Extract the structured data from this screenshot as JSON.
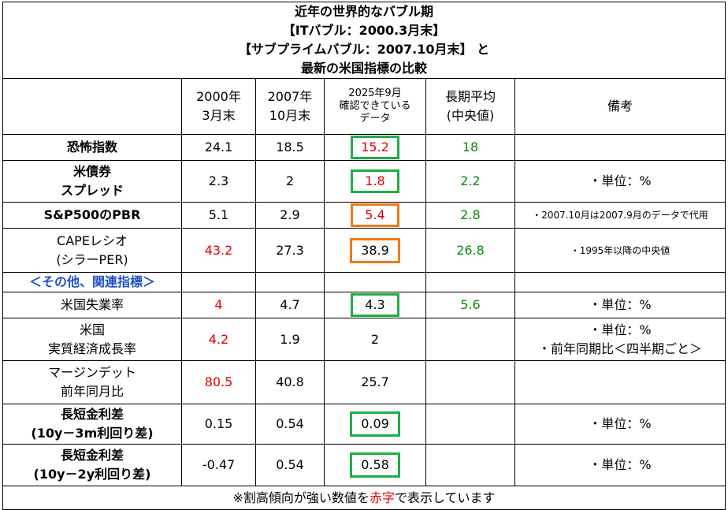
{
  "title": {
    "line1": "近年の世界的なバブル期",
    "line2": "【ITバブル：2000.3月末】",
    "line3": "【サブプライムバブル：2007.10月末】 と",
    "line4": "最新の米国指標の比較"
  },
  "headers": {
    "col1_a": "2000年",
    "col1_b": "3月末",
    "col2_a": "2007年",
    "col2_b": "10月末",
    "col3_a": "2025年9月",
    "col3_b": "確認できている",
    "col3_c": "データ",
    "col4_a": "長期平均",
    "col4_b": "(中央値)",
    "col5": "備考"
  },
  "rows": [
    {
      "label_a": "恐怖指数",
      "label_b": "",
      "v2000": "24.1",
      "v2007": "18.5",
      "v2025": "15.2",
      "avg": "18",
      "note": ""
    },
    {
      "label_a": "米債券",
      "label_b": "スプレッド",
      "v2000": "2.3",
      "v2007": "2",
      "v2025": "1.8",
      "avg": "2.2",
      "note": "・単位：%"
    },
    {
      "label_a": "S&P500のPBR",
      "label_b": "",
      "v2000": "5.1",
      "v2007": "2.9",
      "v2025": "5.4",
      "avg": "2.8",
      "note": "・2007.10月は2007.9月のデータで代用"
    },
    {
      "label_a": "CAPEレシオ",
      "label_b": "(シラーPER)",
      "v2000": "43.2",
      "v2007": "27.3",
      "v2025": "38.9",
      "avg": "26.8",
      "note": "・1995年以降の中央値"
    },
    {
      "label_a": "米国失業率",
      "label_b": "",
      "v2000": "4",
      "v2007": "4.7",
      "v2025": "4.3",
      "avg": "5.6",
      "note": "・単位：%"
    },
    {
      "label_a": "米国",
      "label_b": "実質経済成長率",
      "v2000": "4.2",
      "v2007": "1.9",
      "v2025": "2",
      "avg": "",
      "note": "・単位：%",
      "note2": "・前年同期比＜四半期ごと＞"
    },
    {
      "label_a": "マージンデット",
      "label_b": "前年同月比",
      "v2000": "80.5",
      "v2007": "40.8",
      "v2025": "25.7",
      "avg": "",
      "note": ""
    },
    {
      "label_a": "長短金利差",
      "label_b": "(10y－3m利回り差)",
      "v2000": "0.15",
      "v2007": "0.54",
      "v2025": "0.09",
      "avg": "",
      "note": "・単位：%"
    },
    {
      "label_a": "長短金利差",
      "label_b": "(10y－2y利回り差)",
      "v2000": "-0.47",
      "v2007": "0.54",
      "v2025": "0.58",
      "avg": "",
      "note": "・単位：%"
    }
  ],
  "section_label": "＜その他、関連指標＞",
  "footer": {
    "pre": "※割高傾向が強い数値を",
    "red": "赤字",
    "post": "で表示しています"
  },
  "colors": {
    "red_text": "#e00000",
    "green_text": "#0a8a0a",
    "green_box": "#1fae45",
    "orange_box": "#f07a1a",
    "section_text": "#1e50c8"
  }
}
